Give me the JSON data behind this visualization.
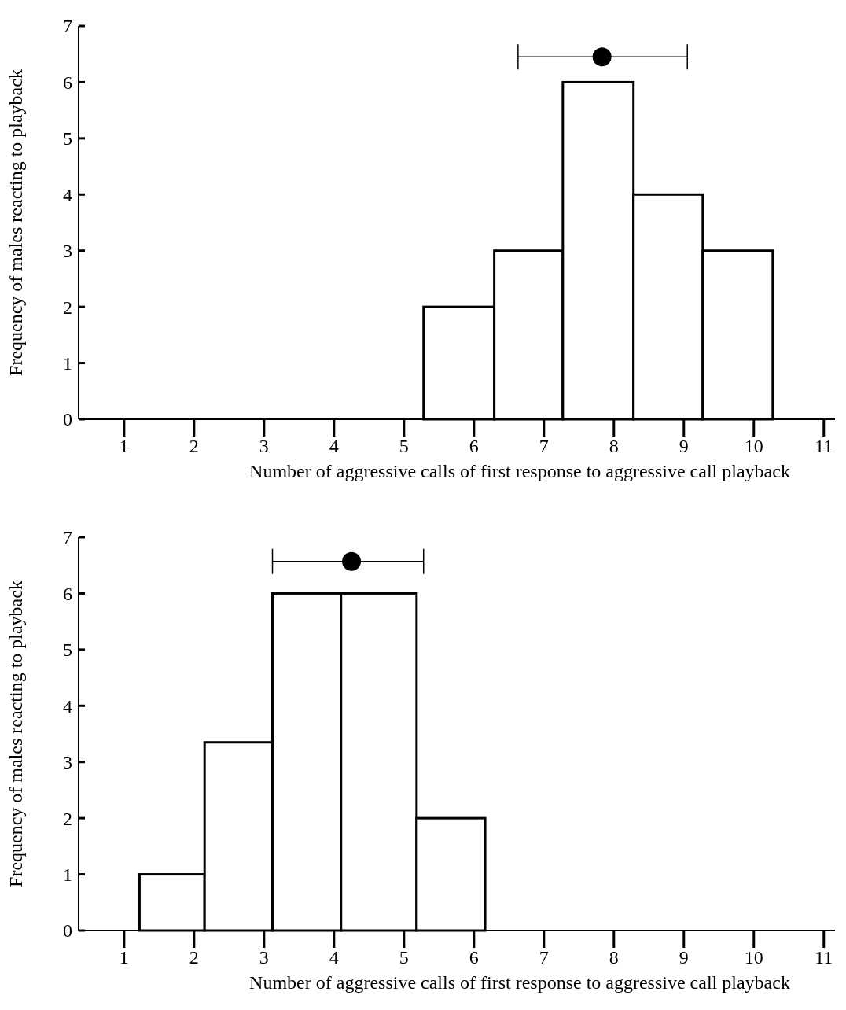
{
  "chart_data": [
    {
      "type": "histogram",
      "xlabel": "Number of aggressive calls of first response to aggressive call playback",
      "ylabel": "Frequency of males reacting to playback",
      "bins": [
        5.28,
        6.29,
        7.27,
        8.28,
        9.27,
        10.27
      ],
      "values": [
        2,
        3,
        6,
        4,
        3
      ],
      "color": "#ffffff",
      "xlim": [
        0.35,
        11.16
      ],
      "ylim": [
        0,
        7
      ],
      "xticks": [
        1,
        2,
        3,
        4,
        5,
        6,
        7,
        8,
        9,
        10,
        11
      ],
      "yticks": [
        0,
        1,
        2,
        3,
        4,
        5,
        6,
        7
      ],
      "series": [
        {
          "type": "scatter",
          "x": [
            7.83
          ],
          "values": [
            6.45
          ],
          "xerrors": [
            [
              6.63,
              9.05
            ]
          ],
          "color": "#000000",
          "marker": "circle"
        }
      ]
    },
    {
      "type": "histogram",
      "xlabel": "Number of aggressive calls of first response to aggressive call playback",
      "ylabel": "Frequency of males reacting to playback",
      "bins": [
        1.22,
        2.15,
        3.12,
        4.1,
        5.18,
        6.16
      ],
      "values": [
        1,
        3.35,
        6,
        6,
        2
      ],
      "color": "#ffffff",
      "xlim": [
        0.35,
        11.16
      ],
      "ylim": [
        0,
        7
      ],
      "xticks": [
        1,
        2,
        3,
        4,
        5,
        6,
        7,
        8,
        9,
        10,
        11
      ],
      "yticks": [
        0,
        1,
        2,
        3,
        4,
        5,
        6,
        7
      ],
      "series": [
        {
          "type": "scatter",
          "x": [
            4.25
          ],
          "values": [
            6.57
          ],
          "xerrors": [
            [
              3.12,
              5.28
            ]
          ],
          "color": "#000000",
          "marker": "circle"
        }
      ]
    }
  ]
}
